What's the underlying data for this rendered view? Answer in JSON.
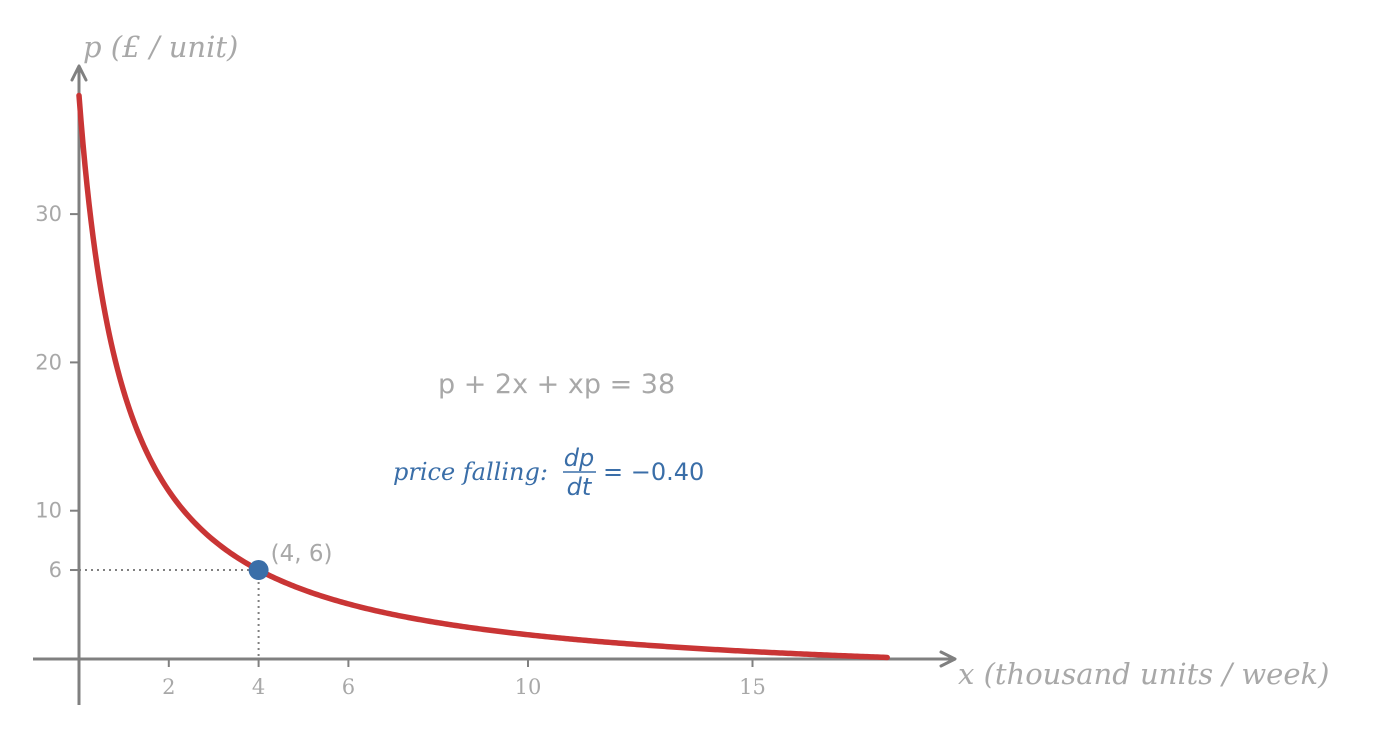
{
  "chart_data": {
    "type": "line",
    "title": "",
    "xlabel": "x (thousand units / week)",
    "ylabel": "p (£ / unit)",
    "xlim": [
      -2.5,
      19.5
    ],
    "ylim": [
      -3,
      40
    ],
    "x_ticks": [
      2,
      4,
      6,
      10,
      15
    ],
    "y_ticks": [
      6,
      10,
      20,
      30
    ],
    "grid": false,
    "series": [
      {
        "equation": "p = (38 - 2x) / (1 + x)",
        "x": [
          0,
          0.25,
          0.5,
          1,
          1.5,
          2,
          3,
          4,
          5,
          6,
          8,
          10,
          12,
          15,
          18
        ],
        "y": [
          38,
          30,
          25,
          18,
          14,
          11.33,
          8,
          6,
          4.67,
          3.71,
          2.44,
          1.64,
          1.08,
          0.5,
          0.11
        ]
      }
    ],
    "highlight_point": {
      "x": 4,
      "y": 6,
      "label": "(4,  6)"
    },
    "annotations": {
      "equation": "p + 2x + xp = 38",
      "rate_prefix": "price falling:",
      "rate_numerator": "dp",
      "rate_denominator": "dt",
      "rate_value": "= −0.40"
    },
    "colors": {
      "curve": "#c93535",
      "point": "#3a6ea8",
      "axis": "#808080",
      "text": "#a8a8a8",
      "annotation": "#3a6ea8"
    }
  }
}
